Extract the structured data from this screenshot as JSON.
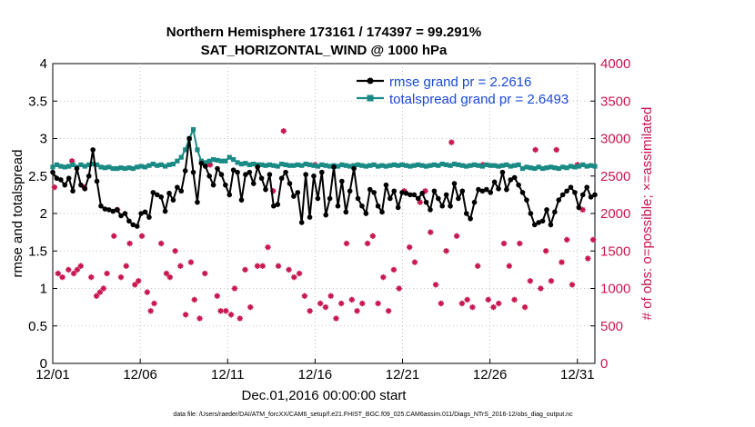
{
  "chart_data": {
    "type": "line",
    "title_line1": "Northern Hemisphere 173161 / 174397 = 99.291%",
    "title_line2": "SAT_HORIZONTAL_WIND @ 1000 hPa",
    "xlabel": "Dec.01,2016 00:00:00 start",
    "ylabel_left": "rmse and totalspread",
    "ylabel_right": "# of obs: o=possible; ×=assimilated",
    "xlim": [
      0,
      31
    ],
    "ylim_left": [
      0,
      4
    ],
    "ylim_right": [
      0,
      4000
    ],
    "x_ticks": [
      0,
      5,
      10,
      15,
      20,
      25,
      30
    ],
    "x_tick_labels": [
      "12/01",
      "12/06",
      "12/11",
      "12/16",
      "12/21",
      "12/26",
      "12/31"
    ],
    "y_ticks_left": [
      0,
      0.5,
      1,
      1.5,
      2,
      2.5,
      3,
      3.5,
      4
    ],
    "y_tick_labels_left": [
      "0",
      "0.5",
      "1",
      "1.5",
      "2",
      "2.5",
      "3",
      "3.5",
      "4"
    ],
    "y_ticks_right": [
      0,
      500,
      1000,
      1500,
      2000,
      2500,
      3000,
      3500,
      4000
    ],
    "y_tick_labels_right": [
      "0",
      "500",
      "1000",
      "1500",
      "2000",
      "2500",
      "3000",
      "3500",
      "4000"
    ],
    "colors": {
      "rmse": "#000000",
      "spread": "#1a8a85",
      "obs": "#c8174f",
      "legend_text": "#1a4bd6"
    },
    "legend_position": "top-right",
    "series": [
      {
        "name": "rmse grand pr = 2.2616",
        "color": "#000000",
        "values": [
          2.55,
          2.47,
          2.45,
          2.38,
          2.47,
          2.3,
          2.6,
          2.38,
          2.33,
          2.5,
          2.85,
          2.43,
          2.1,
          2.06,
          2.05,
          2.03,
          2.05,
          1.97,
          2.0,
          1.9,
          1.85,
          1.83,
          2.0,
          2.02,
          1.95,
          2.28,
          2.25,
          2.22,
          2.03,
          2.27,
          2.18,
          2.35,
          2.3,
          2.57,
          3.0,
          2.55,
          2.15,
          2.67,
          2.63,
          2.5,
          2.38,
          2.6,
          2.52,
          2.38,
          2.25,
          2.58,
          2.55,
          2.18,
          2.52,
          2.55,
          2.4,
          2.62,
          2.47,
          2.32,
          2.52,
          2.1,
          2.12,
          2.47,
          2.55,
          2.4,
          2.23,
          2.28,
          1.88,
          2.52,
          1.95,
          2.5,
          2.2,
          2.55,
          1.98,
          2.2,
          2.62,
          2.1,
          2.43,
          2.02,
          2.3,
          2.6,
          2.2,
          2.1,
          2.0,
          2.32,
          2.28,
          2.1,
          2.02,
          2.38,
          2.2,
          2.3,
          2.08,
          2.28,
          2.27,
          2.25,
          2.25,
          2.2,
          2.27,
          2.15,
          2.05,
          2.3,
          2.2,
          2.1,
          2.25,
          2.1,
          2.4,
          2.2,
          2.3,
          2.0,
          1.93,
          2.15,
          2.32,
          2.3,
          2.32,
          2.28,
          2.42,
          2.33,
          2.55,
          2.32,
          2.45,
          2.48,
          2.38,
          2.28,
          2.18,
          2.0,
          1.85,
          1.88,
          1.9,
          2.05,
          1.85,
          2.02,
          2.18,
          2.25,
          2.3,
          2.35,
          2.28,
          2.08,
          2.25,
          2.35,
          2.22,
          2.25
        ]
      },
      {
        "name": "totalspread grand pr = 2.6493",
        "color": "#1a8a85",
        "values": [
          2.62,
          2.65,
          2.63,
          2.62,
          2.63,
          2.65,
          2.62,
          2.65,
          2.63,
          2.65,
          2.66,
          2.65,
          2.62,
          2.61,
          2.62,
          2.6,
          2.6,
          2.61,
          2.6,
          2.61,
          2.6,
          2.62,
          2.63,
          2.62,
          2.64,
          2.66,
          2.64,
          2.65,
          2.63,
          2.65,
          2.66,
          2.7,
          2.75,
          2.85,
          3.0,
          3.12,
          2.85,
          2.7,
          2.68,
          2.7,
          2.72,
          2.71,
          2.7,
          2.7,
          2.75,
          2.72,
          2.68,
          2.66,
          2.67,
          2.65,
          2.66,
          2.65,
          2.65,
          2.64,
          2.65,
          2.64,
          2.63,
          2.66,
          2.65,
          2.64,
          2.64,
          2.65,
          2.64,
          2.66,
          2.65,
          2.64,
          2.63,
          2.65,
          2.64,
          2.63,
          2.64,
          2.63,
          2.65,
          2.64,
          2.63,
          2.64,
          2.65,
          2.64,
          2.63,
          2.64,
          2.65,
          2.63,
          2.64,
          2.63,
          2.64,
          2.65,
          2.64,
          2.65,
          2.64,
          2.63,
          2.64,
          2.65,
          2.64,
          2.63,
          2.64,
          2.65,
          2.64,
          2.66,
          2.65,
          2.64,
          2.66,
          2.65,
          2.64,
          2.63,
          2.64,
          2.65,
          2.64,
          2.63,
          2.65,
          2.64,
          2.64,
          2.63,
          2.64,
          2.65,
          2.63,
          2.64,
          2.65,
          2.6,
          2.62,
          2.61,
          2.6,
          2.62,
          2.6,
          2.61,
          2.62,
          2.61,
          2.6,
          2.62,
          2.61,
          2.63,
          2.62,
          2.63,
          2.65,
          2.63,
          2.64,
          2.63
        ]
      }
    ],
    "obs_counts": {
      "name": "# of obs",
      "color": "#c8174f",
      "x": [
        0.1,
        0.3,
        0.55,
        0.9,
        1.1,
        1.2,
        1.4,
        1.6,
        1.8,
        2.2,
        2.5,
        2.7,
        2.9,
        3.1,
        3.5,
        3.7,
        3.9,
        4.2,
        4.4,
        4.7,
        4.9,
        5.1,
        5.4,
        5.6,
        5.8,
        6.2,
        6.5,
        6.7,
        7.0,
        7.3,
        7.6,
        7.9,
        8.1,
        8.4,
        8.7,
        9.0,
        9.4,
        9.6,
        9.9,
        10.2,
        10.4,
        10.7,
        11.0,
        11.3,
        11.7,
        12.0,
        12.3,
        12.6,
        12.9,
        13.2,
        13.5,
        13.8,
        14.1,
        14.4,
        14.7,
        15.0,
        15.3,
        15.6,
        15.9,
        16.2,
        16.5,
        16.8,
        17.1,
        17.4,
        17.7,
        18.0,
        18.3,
        18.6,
        18.9,
        19.2,
        19.5,
        19.8,
        20.1,
        20.4,
        20.7,
        21.0,
        21.3,
        21.6,
        21.9,
        22.2,
        22.5,
        22.8,
        23.1,
        23.4,
        23.7,
        24.0,
        24.3,
        24.6,
        24.9,
        25.2,
        25.5,
        25.8,
        26.1,
        26.4,
        26.7,
        27.0,
        27.3,
        27.6,
        27.9,
        28.2,
        28.5,
        28.8,
        29.1,
        29.4,
        29.7,
        30.0,
        30.3,
        30.6,
        30.9
      ],
      "values": [
        2350,
        1200,
        1150,
        1250,
        2700,
        1200,
        1250,
        1300,
        2350,
        1150,
        900,
        950,
        1000,
        1200,
        1700,
        2050,
        1150,
        1300,
        1600,
        1050,
        1100,
        1700,
        950,
        700,
        800,
        1600,
        1200,
        1150,
        1500,
        1300,
        650,
        1350,
        850,
        600,
        1200,
        2650,
        900,
        700,
        700,
        650,
        1000,
        600,
        1250,
        750,
        1300,
        1300,
        1550,
        2300,
        1300,
        3100,
        1250,
        1150,
        1200,
        900,
        700,
        2650,
        800,
        750,
        900,
        600,
        800,
        1600,
        850,
        700,
        800,
        1600,
        1700,
        800,
        1150,
        700,
        1250,
        1000,
        2300,
        1550,
        1350,
        2150,
        2300,
        1750,
        1050,
        800,
        1500,
        2950,
        1700,
        800,
        850,
        750,
        1300,
        2650,
        850,
        750,
        800,
        1600,
        1300,
        850,
        1600,
        750,
        1100,
        2850,
        1000,
        1500,
        1100,
        2850,
        1350,
        1650,
        1050,
        2650,
        2050,
        1400,
        1650
      ]
    }
  }
}
